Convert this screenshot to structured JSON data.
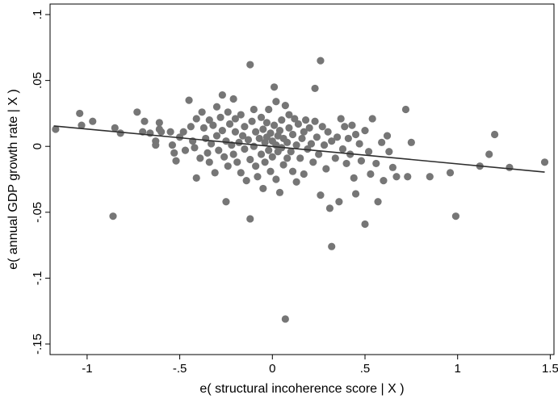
{
  "chart_data": {
    "type": "scatter",
    "title": "",
    "xlabel": "e( structural incoherence score | X )",
    "ylabel": "e( annual GDP growth rate | X )",
    "xlim": [
      -1.2,
      1.52
    ],
    "ylim": [
      -0.158,
      0.108
    ],
    "xticks": [
      -1,
      -0.5,
      0,
      0.5,
      1,
      1.5
    ],
    "xtick_labels": [
      "-1",
      "-.5",
      "0",
      ".5",
      "1",
      "1.5"
    ],
    "yticks": [
      -0.15,
      -0.1,
      -0.05,
      0,
      0.05,
      0.1
    ],
    "ytick_labels": [
      "-.15",
      "-.1",
      "-.05",
      "0",
      ".05",
      ".1"
    ],
    "grid": false,
    "legend": "none",
    "colors": {
      "points": "#767676",
      "line": "#2e2e2e",
      "frame": "#000000"
    },
    "fit_line": {
      "x": [
        -1.18,
        1.47
      ],
      "y": [
        0.0155,
        -0.0195
      ]
    },
    "points": [
      [
        -1.17,
        0.013
      ],
      [
        -1.04,
        0.025
      ],
      [
        -1.03,
        0.016
      ],
      [
        -0.97,
        0.019
      ],
      [
        -0.86,
        -0.053
      ],
      [
        -0.85,
        0.014
      ],
      [
        -0.82,
        0.01
      ],
      [
        -0.73,
        0.026
      ],
      [
        -0.7,
        0.011
      ],
      [
        -0.69,
        0.019
      ],
      [
        -0.66,
        0.01
      ],
      [
        -0.63,
        0.004
      ],
      [
        -0.63,
        0.001
      ],
      [
        -0.61,
        0.018
      ],
      [
        -0.61,
        0.013
      ],
      [
        -0.6,
        0.011
      ],
      [
        -0.55,
        0.011
      ],
      [
        -0.54,
        0.001
      ],
      [
        -0.53,
        -0.005
      ],
      [
        -0.52,
        -0.011
      ],
      [
        -0.5,
        0.007
      ],
      [
        -0.48,
        0.011
      ],
      [
        -0.47,
        -0.003
      ],
      [
        -0.45,
        0.035
      ],
      [
        -0.44,
        0.015
      ],
      [
        -0.43,
        0.004
      ],
      [
        -0.42,
        -0.001
      ],
      [
        -0.41,
        0.021
      ],
      [
        -0.41,
        -0.024
      ],
      [
        -0.39,
        -0.009
      ],
      [
        -0.38,
        0.026
      ],
      [
        -0.37,
        0.014
      ],
      [
        -0.36,
        0.006
      ],
      [
        -0.35,
        -0.005
      ],
      [
        -0.34,
        0.02
      ],
      [
        -0.34,
        -0.012
      ],
      [
        -0.33,
        0.002
      ],
      [
        -0.32,
        0.016
      ],
      [
        -0.31,
        -0.02
      ],
      [
        -0.3,
        0.03
      ],
      [
        -0.3,
        0.008
      ],
      [
        -0.29,
        -0.003
      ],
      [
        -0.28,
        0.022
      ],
      [
        -0.27,
        0.039
      ],
      [
        -0.27,
        0.012
      ],
      [
        -0.26,
        -0.008
      ],
      [
        -0.25,
        -0.042
      ],
      [
        -0.25,
        0.004
      ],
      [
        -0.24,
        0.026
      ],
      [
        -0.24,
        -0.015
      ],
      [
        -0.23,
        0.017
      ],
      [
        -0.22,
        0.001
      ],
      [
        -0.21,
        0.036
      ],
      [
        -0.21,
        -0.006
      ],
      [
        -0.2,
        0.021
      ],
      [
        -0.2,
        0.011
      ],
      [
        -0.19,
        -0.012
      ],
      [
        -0.18,
        0.003
      ],
      [
        -0.17,
        0.024
      ],
      [
        -0.17,
        -0.02
      ],
      [
        -0.16,
        0.008
      ],
      [
        -0.15,
        -0.002
      ],
      [
        -0.15,
        0.015
      ],
      [
        -0.14,
        -0.026
      ],
      [
        -0.13,
        0.005
      ],
      [
        -0.12,
        0.062
      ],
      [
        -0.12,
        -0.055
      ],
      [
        -0.12,
        -0.01
      ],
      [
        -0.11,
        0.019
      ],
      [
        -0.1,
        0.028
      ],
      [
        -0.1,
        0.0
      ],
      [
        -0.09,
        -0.015
      ],
      [
        -0.09,
        0.011
      ],
      [
        -0.08,
        -0.023
      ],
      [
        -0.07,
        0.006
      ],
      [
        -0.06,
        0.022
      ],
      [
        -0.06,
        -0.006
      ],
      [
        -0.05,
        0.013
      ],
      [
        -0.05,
        -0.032
      ],
      [
        -0.04,
        0.003
      ],
      [
        -0.04,
        -0.012
      ],
      [
        -0.03,
        0.018
      ],
      [
        -0.03,
        0.007
      ],
      [
        -0.02,
        -0.003
      ],
      [
        -0.02,
        0.028
      ],
      [
        -0.01,
        0.01
      ],
      [
        -0.01,
        -0.019
      ],
      [
        0.0,
        0.004
      ],
      [
        0.0,
        -0.008
      ],
      [
        0.01,
        0.045
      ],
      [
        0.01,
        0.016
      ],
      [
        0.02,
        0.001
      ],
      [
        0.02,
        -0.025
      ],
      [
        0.02,
        0.034
      ],
      [
        0.03,
        0.008
      ],
      [
        0.03,
        -0.004
      ],
      [
        0.04,
        0.012
      ],
      [
        0.04,
        -0.035
      ],
      [
        0.05,
        -0.001
      ],
      [
        0.05,
        0.02
      ],
      [
        0.06,
        0.006
      ],
      [
        0.06,
        -0.014
      ],
      [
        0.07,
        -0.131
      ],
      [
        0.07,
        0.031
      ],
      [
        0.08,
        0.003
      ],
      [
        0.08,
        -0.009
      ],
      [
        0.09,
        0.024
      ],
      [
        0.09,
        0.014
      ],
      [
        0.1,
        -0.004
      ],
      [
        0.11,
        0.009
      ],
      [
        0.11,
        -0.019
      ],
      [
        0.12,
        0.021
      ],
      [
        0.13,
        0.001
      ],
      [
        0.13,
        -0.027
      ],
      [
        0.14,
        0.017
      ],
      [
        0.15,
        -0.009
      ],
      [
        0.16,
        0.006
      ],
      [
        0.17,
        0.011
      ],
      [
        0.17,
        -0.021
      ],
      [
        0.18,
        0.02
      ],
      [
        0.19,
        -0.002
      ],
      [
        0.2,
        0.014
      ],
      [
        0.21,
        0.002
      ],
      [
        0.22,
        -0.012
      ],
      [
        0.23,
        0.044
      ],
      [
        0.23,
        0.019
      ],
      [
        0.24,
        0.007
      ],
      [
        0.25,
        -0.006
      ],
      [
        0.26,
        0.065
      ],
      [
        0.26,
        -0.037
      ],
      [
        0.27,
        0.015
      ],
      [
        0.28,
        0.001
      ],
      [
        0.29,
        -0.017
      ],
      [
        0.3,
        0.011
      ],
      [
        0.31,
        -0.047
      ],
      [
        0.32,
        -0.076
      ],
      [
        0.32,
        0.004
      ],
      [
        0.34,
        -0.009
      ],
      [
        0.35,
        0.007
      ],
      [
        0.36,
        -0.042
      ],
      [
        0.37,
        0.021
      ],
      [
        0.38,
        -0.002
      ],
      [
        0.39,
        0.015
      ],
      [
        0.4,
        -0.013
      ],
      [
        0.41,
        0.006
      ],
      [
        0.42,
        -0.006
      ],
      [
        0.43,
        0.016
      ],
      [
        0.44,
        -0.024
      ],
      [
        0.45,
        0.009
      ],
      [
        0.45,
        -0.036
      ],
      [
        0.47,
        0.002
      ],
      [
        0.48,
        -0.011
      ],
      [
        0.5,
        -0.059
      ],
      [
        0.5,
        0.012
      ],
      [
        0.52,
        -0.004
      ],
      [
        0.53,
        -0.021
      ],
      [
        0.54,
        0.021
      ],
      [
        0.56,
        -0.013
      ],
      [
        0.57,
        -0.042
      ],
      [
        0.59,
        0.003
      ],
      [
        0.6,
        -0.026
      ],
      [
        0.62,
        0.008
      ],
      [
        0.63,
        -0.004
      ],
      [
        0.65,
        -0.016
      ],
      [
        0.67,
        -0.023
      ],
      [
        0.72,
        0.028
      ],
      [
        0.73,
        -0.023
      ],
      [
        0.75,
        0.003
      ],
      [
        0.85,
        -0.023
      ],
      [
        0.96,
        -0.02
      ],
      [
        0.99,
        -0.053
      ],
      [
        1.12,
        -0.015
      ],
      [
        1.17,
        -0.006
      ],
      [
        1.2,
        0.009
      ],
      [
        1.28,
        -0.016
      ],
      [
        1.47,
        -0.012
      ]
    ]
  }
}
